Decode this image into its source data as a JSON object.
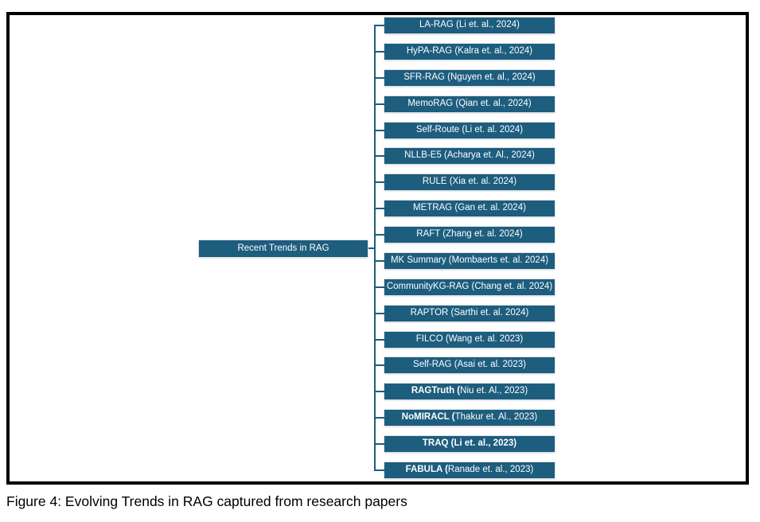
{
  "figure": {
    "caption": "Figure 4: Evolving Trends in RAG captured from research papers"
  },
  "tree": {
    "root": "Recent Trends in RAG",
    "colors": {
      "node_fill": "#1d5d7e",
      "node_text": "#ffffff",
      "connector": "#1d5d7e",
      "frame_border": "#000000",
      "caption_text": "#000000"
    },
    "items": [
      {
        "bold": "",
        "text": "LA-RAG (Li et. al., 2024)"
      },
      {
        "bold": "",
        "text": "HyPA-RAG (Kalra et. al., 2024)"
      },
      {
        "bold": "",
        "text": "SFR-RAG (Nguyen et. al., 2024)"
      },
      {
        "bold": "",
        "text": "MemoRAG (Qian et. al., 2024)"
      },
      {
        "bold": "",
        "text": "Self-Route (Li et. al. 2024)"
      },
      {
        "bold": "",
        "text": "NLLB-E5 (Acharya et. Al., 2024)"
      },
      {
        "bold": "",
        "text": "RULE (Xia et. al. 2024)"
      },
      {
        "bold": "",
        "text": "METRAG (Gan et. al. 2024)"
      },
      {
        "bold": "",
        "text": "RAFT (Zhang et. al. 2024)"
      },
      {
        "bold": "",
        "text": "MK Summary (Mombaerts et. al. 2024)"
      },
      {
        "bold": "",
        "text": "CommunityKG-RAG (Chang et. al. 2024)"
      },
      {
        "bold": "",
        "text": "RAPTOR (Sarthi et. al. 2024)"
      },
      {
        "bold": "",
        "text": "FILCO (Wang et. al. 2023)"
      },
      {
        "bold": "",
        "text": "Self-RAG (Asai et. al. 2023)"
      },
      {
        "bold": "RAGTruth (",
        "text": "Niu et. Al., 2023)"
      },
      {
        "bold": "NoMIRACL (",
        "text": "Thakur et. Al., 2023)"
      },
      {
        "bold": "TRAQ (Li et. al., 2023)",
        "text": ""
      },
      {
        "bold": "FABULA (",
        "text": "Ranade et. al., 2023)"
      }
    ]
  }
}
